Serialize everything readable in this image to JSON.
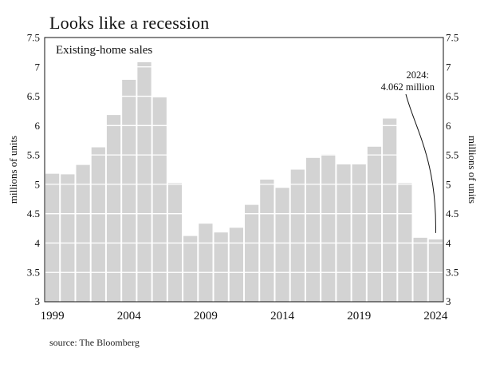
{
  "title": "Looks like a recession",
  "source": "source: The Bloomberg",
  "chart_data": {
    "type": "bar",
    "title": "Existing-home sales",
    "ylabel_left": "millions of units",
    "ylabel_right": "millions of units",
    "ylim": [
      3,
      7.5
    ],
    "y_ticks": [
      "3",
      "3.5",
      "4",
      "4.5",
      "5",
      "5.5",
      "6",
      "6.5",
      "7",
      "7.5"
    ],
    "x_tick_labels": [
      "1999",
      "2004",
      "2009",
      "2014",
      "2019",
      "2024"
    ],
    "categories": [
      "1999",
      "2000",
      "2001",
      "2002",
      "2003",
      "2004",
      "2005",
      "2006",
      "2007",
      "2008",
      "2009",
      "2010",
      "2011",
      "2012",
      "2013",
      "2014",
      "2015",
      "2016",
      "2017",
      "2018",
      "2019",
      "2020",
      "2021",
      "2022",
      "2023",
      "2024"
    ],
    "values": [
      5.18,
      5.17,
      5.33,
      5.63,
      6.18,
      6.78,
      7.08,
      6.48,
      5.02,
      4.12,
      4.33,
      4.18,
      4.26,
      4.65,
      5.08,
      4.94,
      5.25,
      5.45,
      5.51,
      5.34,
      5.34,
      5.64,
      6.12,
      5.02,
      4.09,
      4.062
    ],
    "grid": true,
    "bar_color": "#d3d3d3",
    "grid_color": "#ffffff",
    "annotation": {
      "line1": "2024:",
      "line2": "4.062 million",
      "category": "2024"
    }
  }
}
